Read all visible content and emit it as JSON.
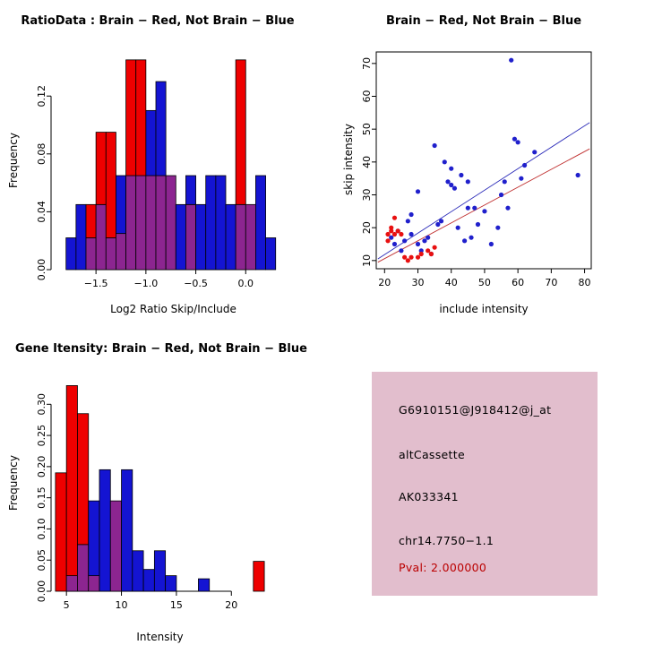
{
  "figure": {
    "background": "#FFFFFF"
  },
  "colors": {
    "red": "#EE0000",
    "blue": "#1414D2",
    "overlap_purple": "#8C2590",
    "scatter_blue": "#2020CC",
    "scatter_red": "#E81010",
    "fit_line_blue": "#2A2AB8",
    "fit_line_red": "#C03030",
    "axis": "#000000",
    "info_box_bg": "#E2BECD",
    "pval_text": "#BB0000"
  },
  "chart_data": [
    {
      "id": "ratio_hist",
      "type": "histogram",
      "title": "RatioData : Brain − Red, Not Brain − Blue",
      "xlabel": "Log2 Ratio Skip/Include",
      "ylabel": "Frequency",
      "xlim": [
        -1.95,
        0.5
      ],
      "ylim": [
        0,
        0.148
      ],
      "x_ticks": [
        -1.5,
        -1.0,
        -0.5,
        0.0
      ],
      "x_tick_labels": [
        "−1.5",
        "−1.0",
        "−0.5",
        "0.0"
      ],
      "y_ticks": [
        0.0,
        0.04,
        0.08,
        0.12
      ],
      "y_tick_labels": [
        "0.00",
        "0.04",
        "0.08",
        "0.12"
      ],
      "bin_width": 0.1,
      "grid": false,
      "boxed": false,
      "series": [
        {
          "name": "Brain",
          "color": "red",
          "bins": [
            [
              -1.6,
              0.045
            ],
            [
              -1.5,
              0.095
            ],
            [
              -1.4,
              0.095
            ],
            [
              -1.3,
              0.025
            ],
            [
              -1.2,
              0.145
            ],
            [
              -1.1,
              0.145
            ],
            [
              -1.0,
              0.065
            ],
            [
              -0.9,
              0.065
            ],
            [
              -0.8,
              0.065
            ],
            [
              -0.6,
              0.045
            ],
            [
              -0.1,
              0.145
            ],
            [
              0.0,
              0.045
            ]
          ]
        },
        {
          "name": "Not Brain",
          "color": "blue",
          "bins": [
            [
              -1.8,
              0.022
            ],
            [
              -1.7,
              0.045
            ],
            [
              -1.6,
              0.022
            ],
            [
              -1.5,
              0.045
            ],
            [
              -1.4,
              0.022
            ],
            [
              -1.3,
              0.065
            ],
            [
              -1.2,
              0.065
            ],
            [
              -1.1,
              0.065
            ],
            [
              -1.0,
              0.11
            ],
            [
              -0.9,
              0.13
            ],
            [
              -0.8,
              0.065
            ],
            [
              -0.7,
              0.045
            ],
            [
              -0.6,
              0.065
            ],
            [
              -0.5,
              0.045
            ],
            [
              -0.4,
              0.065
            ],
            [
              -0.3,
              0.065
            ],
            [
              -0.2,
              0.045
            ],
            [
              -0.1,
              0.045
            ],
            [
              0.0,
              0.045
            ],
            [
              0.1,
              0.065
            ],
            [
              0.2,
              0.022
            ]
          ]
        }
      ]
    },
    {
      "id": "intensity_scatter",
      "type": "scatter",
      "title": "Brain − Red, Not Brain − Blue",
      "xlabel": "include intensity",
      "ylabel": "skip intensity",
      "xlim": [
        17.5,
        82
      ],
      "ylim": [
        7.5,
        73.5
      ],
      "x_ticks": [
        20,
        30,
        40,
        50,
        60,
        70,
        80
      ],
      "x_tick_labels": [
        "20",
        "30",
        "40",
        "50",
        "60",
        "70",
        "80"
      ],
      "y_ticks": [
        10,
        20,
        30,
        40,
        50,
        60,
        70
      ],
      "y_tick_labels": [
        "10",
        "20",
        "30",
        "40",
        "50",
        "60",
        "70"
      ],
      "grid": false,
      "boxed": true,
      "series": [
        {
          "name": "Not Brain",
          "color": "scatter_blue",
          "points": [
            [
              22,
              17
            ],
            [
              23,
              15
            ],
            [
              24,
              19
            ],
            [
              25,
              13
            ],
            [
              26,
              16
            ],
            [
              27,
              22
            ],
            [
              28,
              24
            ],
            [
              28,
              18
            ],
            [
              30,
              31
            ],
            [
              30,
              15
            ],
            [
              31,
              13
            ],
            [
              32,
              16
            ],
            [
              33,
              17
            ],
            [
              34,
              12
            ],
            [
              35,
              45
            ],
            [
              36,
              21
            ],
            [
              37,
              22
            ],
            [
              38,
              40
            ],
            [
              39,
              34
            ],
            [
              40,
              33
            ],
            [
              40,
              38
            ],
            [
              41,
              32
            ],
            [
              42,
              20
            ],
            [
              43,
              36
            ],
            [
              44,
              16
            ],
            [
              45,
              34
            ],
            [
              45,
              26
            ],
            [
              46,
              17
            ],
            [
              47,
              26
            ],
            [
              48,
              21
            ],
            [
              50,
              25
            ],
            [
              52,
              15
            ],
            [
              54,
              20
            ],
            [
              55,
              30
            ],
            [
              56,
              34
            ],
            [
              57,
              26
            ],
            [
              58,
              71
            ],
            [
              59,
              47
            ],
            [
              60,
              46
            ],
            [
              61,
              35
            ],
            [
              62,
              39
            ],
            [
              65,
              43
            ],
            [
              78,
              36
            ]
          ]
        },
        {
          "name": "Brain",
          "color": "scatter_red",
          "points": [
            [
              21,
              18
            ],
            [
              21,
              16
            ],
            [
              22,
              20
            ],
            [
              22,
              19
            ],
            [
              23,
              23
            ],
            [
              23,
              18
            ],
            [
              24,
              19
            ],
            [
              25,
              18
            ],
            [
              26,
              11
            ],
            [
              27,
              10
            ],
            [
              28,
              11
            ],
            [
              30,
              11
            ],
            [
              31,
              12
            ],
            [
              33,
              13
            ],
            [
              34,
              12
            ],
            [
              35,
              14
            ]
          ]
        }
      ],
      "fit_lines": [
        {
          "color": "fit_line_blue",
          "x1": 18,
          "y1": 10.5,
          "x2": 81.5,
          "y2": 52
        },
        {
          "color": "fit_line_red",
          "x1": 18,
          "y1": 9.5,
          "x2": 81.5,
          "y2": 44
        }
      ]
    },
    {
      "id": "gene_hist",
      "type": "histogram",
      "title": "Gene Itensity: Brain − Red, Not Brain − Blue",
      "xlabel": "Intensity",
      "ylabel": "Frequency",
      "xlim": [
        3.6,
        23.4
      ],
      "ylim": [
        0,
        0.345
      ],
      "x_ticks": [
        5,
        10,
        15,
        20
      ],
      "x_tick_labels": [
        "5",
        "10",
        "15",
        "20"
      ],
      "y_ticks": [
        0,
        0.05,
        0.1,
        0.15,
        0.2,
        0.25,
        0.3
      ],
      "y_tick_labels": [
        "0.00",
        "0.05",
        "0.10",
        "0.15",
        "0.20",
        "0.25",
        "0.30"
      ],
      "bin_width": 1,
      "grid": false,
      "boxed": false,
      "series": [
        {
          "name": "Brain",
          "color": "red",
          "bins": [
            [
              4,
              0.19
            ],
            [
              5,
              0.33
            ],
            [
              6,
              0.285
            ],
            [
              7,
              0.025
            ],
            [
              9,
              0.145
            ],
            [
              22,
              0.048
            ]
          ]
        },
        {
          "name": "Not Brain",
          "color": "blue",
          "bins": [
            [
              5,
              0.025
            ],
            [
              6,
              0.075
            ],
            [
              7,
              0.145
            ],
            [
              8,
              0.195
            ],
            [
              9,
              0.145
            ],
            [
              10,
              0.195
            ],
            [
              11,
              0.065
            ],
            [
              12,
              0.035
            ],
            [
              13,
              0.065
            ],
            [
              14,
              0.025
            ],
            [
              17,
              0.02
            ]
          ]
        }
      ]
    }
  ],
  "info_box": {
    "lines": [
      {
        "text": "G6910151@J918412@j_at"
      },
      {
        "text": "altCassette"
      },
      {
        "text": "AK033341"
      },
      {
        "text": "chr14.7750−1.1"
      },
      {
        "text": "Pval: 2.000000"
      }
    ]
  }
}
